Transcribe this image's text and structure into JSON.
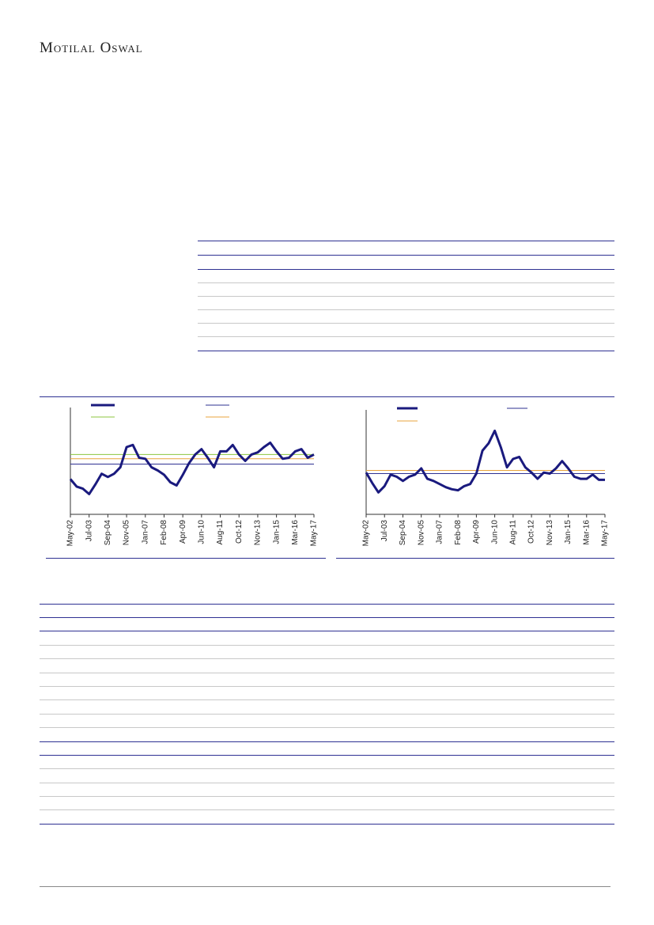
{
  "header": {
    "brand": "Motilal Oswal"
  },
  "chart_data": [
    {
      "type": "line",
      "categories": [
        "May-02",
        null,
        null,
        "Jul-03",
        null,
        null,
        "Sep-04",
        null,
        null,
        "Nov-05",
        null,
        null,
        "Jan-07",
        null,
        null,
        "Feb-08",
        null,
        null,
        "Apr-09",
        null,
        null,
        "Jun-10",
        null,
        null,
        "Aug-11",
        null,
        null,
        "Oct-12",
        null,
        null,
        "Nov-13",
        null,
        null,
        "Jan-15",
        null,
        null,
        "Mar-16",
        null,
        null,
        "May-17"
      ],
      "series": [
        {
          "color": "#1a1a7e",
          "values": [
            33,
            26,
            24,
            19,
            28,
            38,
            35,
            38,
            44,
            63,
            65,
            53,
            52,
            44,
            41,
            37,
            30,
            27,
            37,
            48,
            56,
            61,
            53,
            44,
            59,
            59,
            65,
            56,
            50,
            56,
            58,
            63,
            67,
            59,
            52,
            53,
            59,
            61,
            53,
            56
          ]
        }
      ],
      "hlines": [
        {
          "color": "#2e3192",
          "value": 47
        },
        {
          "color": "#8dc63f",
          "value": 56
        },
        {
          "color": "#e8a33d",
          "value": 52
        }
      ],
      "ylim": [
        0,
        100
      ]
    },
    {
      "type": "line",
      "categories": [
        "May-02",
        null,
        null,
        "Jul-03",
        null,
        null,
        "Sep-04",
        null,
        null,
        "Nov-05",
        null,
        null,
        "Jan-07",
        null,
        null,
        "Feb-08",
        null,
        null,
        "Apr-09",
        null,
        null,
        "Jun-10",
        null,
        null,
        "Aug-11",
        null,
        null,
        "Oct-12",
        null,
        null,
        "Nov-13",
        null,
        null,
        "Jan-15",
        null,
        null,
        "Mar-16",
        null,
        null,
        "May-17"
      ],
      "series": [
        {
          "color": "#1a1a7e",
          "values": [
            40,
            30,
            21,
            27,
            38,
            36,
            32,
            36,
            38,
            44,
            34,
            32,
            29,
            26,
            24,
            23,
            27,
            29,
            39,
            61,
            68,
            80,
            64,
            45,
            53,
            55,
            45,
            40,
            34,
            40,
            39,
            44,
            51,
            44,
            36,
            34,
            34,
            38,
            33,
            33
          ]
        }
      ],
      "hlines": [
        {
          "color": "#2e3192",
          "value": 39
        },
        {
          "color": "#e8a33d",
          "value": 42
        }
      ],
      "ylim": [
        0,
        100
      ]
    }
  ]
}
